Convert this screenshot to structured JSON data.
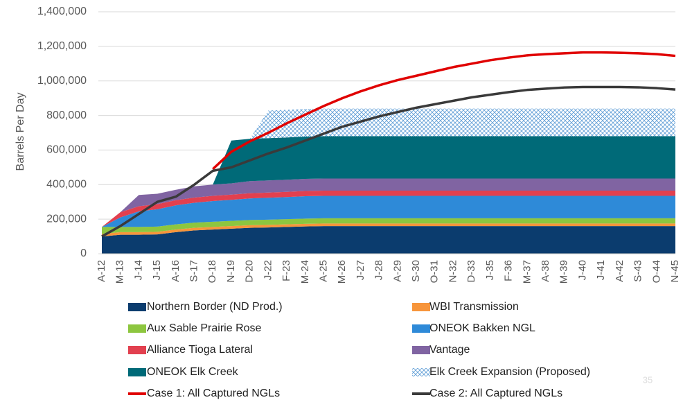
{
  "chart_data": {
    "type": "area",
    "y_label": "Barrels Per Day",
    "page_number": "35",
    "categories": [
      "A-12",
      "M-13",
      "J-14",
      "J-15",
      "A-16",
      "S-17",
      "O-18",
      "N-19",
      "D-20",
      "J-22",
      "F-23",
      "M-24",
      "A-25",
      "M-26",
      "J-27",
      "J-28",
      "A-29",
      "S-30",
      "O-31",
      "N-32",
      "D-33",
      "J-35",
      "F-36",
      "M-37",
      "A-38",
      "M-39",
      "J-40",
      "J-41",
      "A-42",
      "S-43",
      "O-44",
      "N-45"
    ],
    "ylim": [
      0,
      1400000
    ],
    "yticks": [
      0,
      {
        "value": 200000,
        "label": "200,000"
      },
      {
        "value": 400000,
        "label": "400,000"
      },
      {
        "value": 600000,
        "label": "600,000"
      },
      {
        "value": 800000,
        "label": "800,000"
      },
      {
        "value": 1000000,
        "label": "1,000,000"
      },
      {
        "value": 1200000,
        "label": "1,200,000"
      },
      {
        "value": 1400000,
        "label": "1,400,000"
      }
    ],
    "grid": true,
    "series": [
      {
        "name": "Northern Border (ND Prod.)",
        "type": "area",
        "color": "#0b3c6e",
        "values": [
          100000,
          110000,
          110000,
          112000,
          125000,
          135000,
          140000,
          145000,
          150000,
          152000,
          155000,
          158000,
          160000,
          160000,
          160000,
          160000,
          160000,
          160000,
          160000,
          160000,
          160000,
          160000,
          160000,
          160000,
          160000,
          160000,
          160000,
          160000,
          160000,
          160000,
          160000,
          160000
        ]
      },
      {
        "name": "WBI Transmission",
        "type": "area",
        "color": "#f7953b",
        "values": [
          15000,
          15000,
          15000,
          15000,
          15000,
          15000,
          15000,
          15000,
          15000,
          15000,
          15000,
          15000,
          15000,
          15000,
          15000,
          15000,
          15000,
          15000,
          15000,
          15000,
          15000,
          15000,
          15000,
          15000,
          15000,
          15000,
          15000,
          15000,
          15000,
          15000,
          15000,
          15000
        ]
      },
      {
        "name": "Aux Sable Prairie Rose",
        "type": "area",
        "color": "#8dc63f",
        "values": [
          40000,
          30000,
          30000,
          30000,
          30000,
          30000,
          30000,
          30000,
          30000,
          30000,
          30000,
          30000,
          30000,
          30000,
          30000,
          30000,
          30000,
          30000,
          30000,
          30000,
          30000,
          30000,
          30000,
          30000,
          30000,
          30000,
          30000,
          30000,
          30000,
          30000,
          30000,
          30000
        ]
      },
      {
        "name": "ONEOK Bakken NGL",
        "type": "area",
        "color": "#2e8ad8",
        "values": [
          0,
          55000,
          90000,
          100000,
          110000,
          115000,
          120000,
          122000,
          125000,
          127000,
          128000,
          130000,
          130000,
          130000,
          130000,
          130000,
          130000,
          130000,
          130000,
          130000,
          130000,
          130000,
          130000,
          130000,
          130000,
          130000,
          130000,
          130000,
          130000,
          130000,
          130000,
          130000
        ]
      },
      {
        "name": "Alliance Tioga Lateral",
        "type": "area",
        "color": "#e2404f",
        "values": [
          0,
          30000,
          30000,
          30000,
          30000,
          30000,
          30000,
          30000,
          30000,
          30000,
          30000,
          30000,
          30000,
          30000,
          30000,
          30000,
          30000,
          30000,
          30000,
          30000,
          30000,
          30000,
          30000,
          30000,
          30000,
          30000,
          30000,
          30000,
          30000,
          30000,
          30000,
          30000
        ]
      },
      {
        "name": "Vantage",
        "type": "area",
        "color": "#8064a2",
        "values": [
          0,
          0,
          65000,
          60000,
          60000,
          65000,
          65000,
          65000,
          70000,
          70000,
          70000,
          70000,
          70000,
          70000,
          70000,
          70000,
          70000,
          70000,
          70000,
          70000,
          70000,
          70000,
          70000,
          70000,
          70000,
          70000,
          70000,
          70000,
          70000,
          70000,
          70000,
          70000
        ]
      },
      {
        "name": "ONEOK Elk Creek",
        "type": "area",
        "color": "#006a78",
        "values": [
          0,
          0,
          0,
          0,
          0,
          0,
          0,
          248000,
          245000,
          245000,
          245000,
          245000,
          245000,
          245000,
          245000,
          245000,
          245000,
          245000,
          245000,
          245000,
          245000,
          245000,
          245000,
          245000,
          245000,
          245000,
          245000,
          245000,
          245000,
          245000,
          245000,
          245000
        ]
      },
      {
        "name": "Elk Creek Expansion (Proposed)",
        "type": "area",
        "hatch": true,
        "color": "#5b9bd5",
        "values": [
          0,
          0,
          0,
          0,
          0,
          0,
          0,
          0,
          0,
          160000,
          160000,
          160000,
          160000,
          160000,
          160000,
          160000,
          160000,
          160000,
          160000,
          160000,
          160000,
          160000,
          160000,
          160000,
          160000,
          160000,
          160000,
          160000,
          160000,
          160000,
          160000,
          160000
        ]
      },
      {
        "name": "Case 1: All Captured NGLs",
        "type": "line",
        "color": "#e00000",
        "values": [
          null,
          null,
          null,
          null,
          null,
          null,
          490000,
          590000,
          650000,
          700000,
          755000,
          805000,
          855000,
          900000,
          940000,
          975000,
          1005000,
          1030000,
          1055000,
          1080000,
          1100000,
          1120000,
          1135000,
          1148000,
          1155000,
          1160000,
          1165000,
          1165000,
          1163000,
          1160000,
          1155000,
          1145000
        ]
      },
      {
        "name": "Case 2: All Captured NGLs",
        "type": "line",
        "color": "#3a3a3a",
        "values": [
          100000,
          160000,
          230000,
          300000,
          330000,
          400000,
          480000,
          500000,
          540000,
          580000,
          615000,
          655000,
          695000,
          735000,
          765000,
          795000,
          820000,
          845000,
          865000,
          885000,
          905000,
          920000,
          935000,
          948000,
          955000,
          962000,
          965000,
          965000,
          965000,
          963000,
          958000,
          950000
        ]
      }
    ]
  }
}
